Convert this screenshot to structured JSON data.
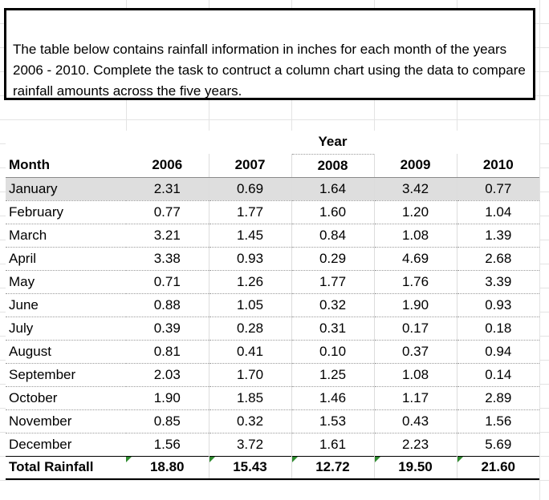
{
  "note": "The table below contains rainfall information in inches for each month of the years 2006 - 2010. Complete the task to contruct a column chart using the data to compare rainfall amounts across the five years.",
  "table": {
    "year_group_label": "Year",
    "month_header": "Month",
    "years": [
      "2006",
      "2007",
      "2008",
      "2009",
      "2010"
    ],
    "rows": [
      {
        "month": "January",
        "values": [
          "2.31",
          "0.69",
          "1.64",
          "3.42",
          "0.77"
        ]
      },
      {
        "month": "February",
        "values": [
          "0.77",
          "1.77",
          "1.60",
          "1.20",
          "1.04"
        ]
      },
      {
        "month": "March",
        "values": [
          "3.21",
          "1.45",
          "0.84",
          "1.08",
          "1.39"
        ]
      },
      {
        "month": "April",
        "values": [
          "3.38",
          "0.93",
          "0.29",
          "4.69",
          "2.68"
        ]
      },
      {
        "month": "May",
        "values": [
          "0.71",
          "1.26",
          "1.77",
          "1.76",
          "3.39"
        ]
      },
      {
        "month": "June",
        "values": [
          "0.88",
          "1.05",
          "0.32",
          "1.90",
          "0.93"
        ]
      },
      {
        "month": "July",
        "values": [
          "0.39",
          "0.28",
          "0.31",
          "0.17",
          "0.18"
        ]
      },
      {
        "month": "August",
        "values": [
          "0.81",
          "0.41",
          "0.10",
          "0.37",
          "0.94"
        ]
      },
      {
        "month": "September",
        "values": [
          "2.03",
          "1.70",
          "1.25",
          "1.08",
          "0.14"
        ]
      },
      {
        "month": "October",
        "values": [
          "1.90",
          "1.85",
          "1.46",
          "1.17",
          "2.89"
        ]
      },
      {
        "month": "November",
        "values": [
          "0.85",
          "0.32",
          "1.53",
          "0.43",
          "1.56"
        ]
      },
      {
        "month": "December",
        "values": [
          "1.56",
          "3.72",
          "1.61",
          "2.23",
          "5.69"
        ]
      }
    ],
    "total": {
      "label": "Total Rainfall",
      "values": [
        "18.80",
        "15.43",
        "12.72",
        "19.50",
        "21.60"
      ]
    }
  },
  "colors": {
    "grid": "#e3e3e3",
    "selected_row": "#dedede",
    "error_marker": "#2e8b2e"
  }
}
